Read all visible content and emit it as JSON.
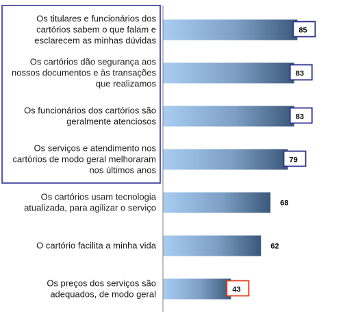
{
  "chart_data": {
    "type": "bar",
    "orientation": "horizontal",
    "categories": [
      [
        "Os titulares e funcionários dos",
        "cartórios sabem o que falam e",
        "esclarecem as minhas dúvidas"
      ],
      [
        "Os cartórios dão segurança aos",
        "nossos documentos e às transações",
        "que realizamos"
      ],
      [
        "Os funcionários dos cartórios são",
        "geralmente atenciosos"
      ],
      [
        "Os serviços e atendimento nos",
        "cartórios de modo geral melhoraram",
        "nos últimos anos"
      ],
      [
        "Os cartórios usam tecnologia",
        "atualizada, para agilizar o serviço"
      ],
      [
        "O cartório facilita a minha vida"
      ],
      [
        "Os preços dos serviços são",
        "adequados, de modo geral"
      ]
    ],
    "values": [
      85,
      83,
      83,
      79,
      68,
      62,
      43
    ],
    "value_labels": [
      "85",
      "83",
      "83",
      "79",
      "68",
      "62",
      "43"
    ],
    "highlighted_top_group": [
      0,
      1,
      2,
      3
    ],
    "highlighted_low": [
      6
    ],
    "xlim": [
      0,
      100
    ],
    "grid": false,
    "colors": {
      "bar_light": "#a9cdf2",
      "bar_dark": "#3b5878",
      "group_box": "#2e3192",
      "low_box": "#e04020",
      "axis": "#808080"
    }
  }
}
